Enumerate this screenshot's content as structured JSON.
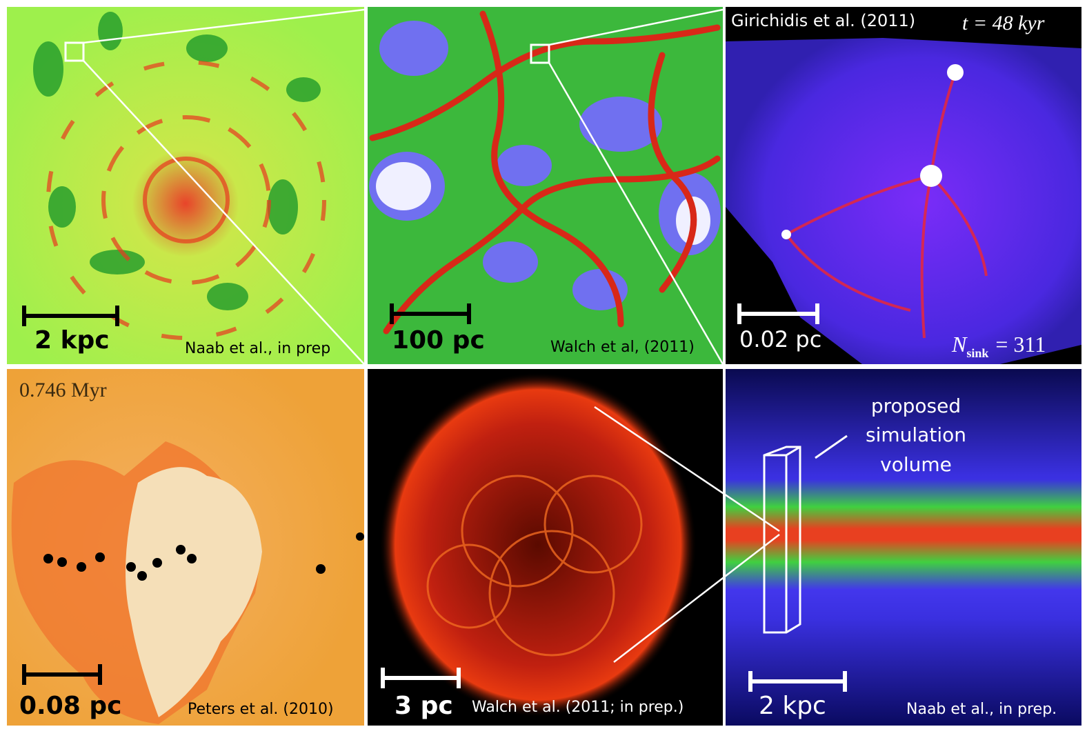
{
  "panels": [
    {
      "scale_bar": "2 kpc",
      "credit": "Naab et al., in prep"
    },
    {
      "scale_bar": "100 pc",
      "credit": "Walch et al, (2011)"
    },
    {
      "heading": "Girichidis et al. (2011)",
      "time": "t = 48 kyr",
      "scale_bar": "0.02 pc",
      "sink_symbol": "N",
      "sink_subscript": "sink",
      "sink_count": "= 311"
    },
    {
      "time": "0.746 Myr",
      "scale_bar": "0.08 pc",
      "credit": "Peters et al. (2010)"
    },
    {
      "scale_bar": "3 pc",
      "credit": "Walch et al. (2011; in prep.)"
    },
    {
      "annotation": [
        "proposed",
        "simulation",
        "volume"
      ],
      "scale_bar": "2 kpc",
      "credit": "Naab et al., in prep."
    }
  ]
}
